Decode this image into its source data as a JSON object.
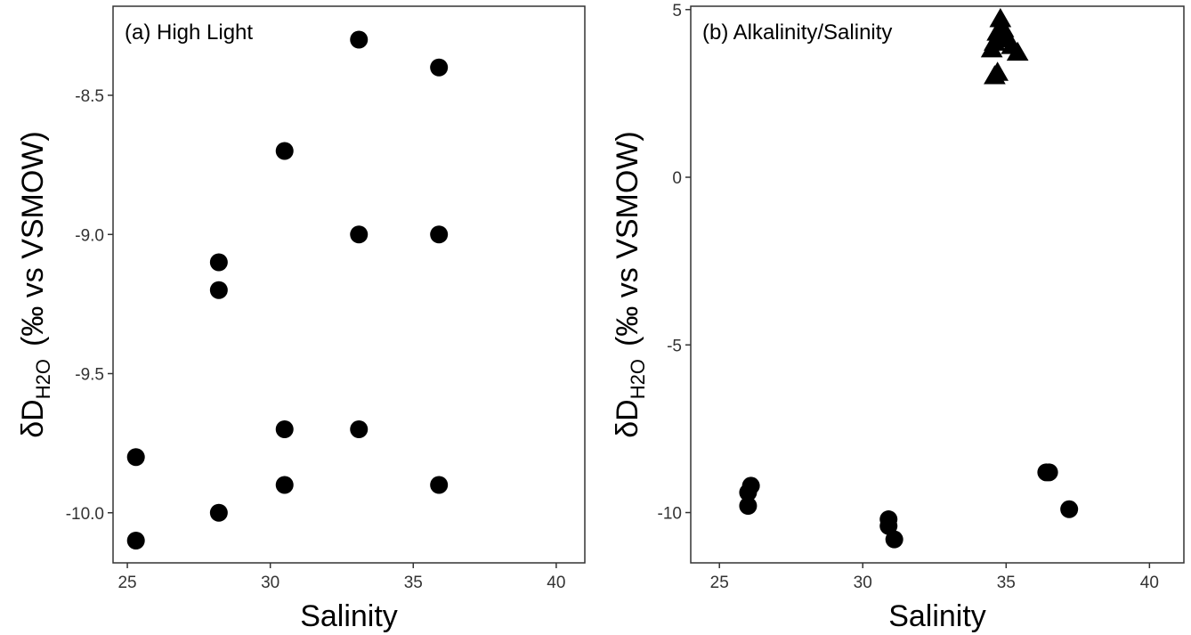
{
  "chart_data": [
    {
      "type": "scatter",
      "title": "(a) High Light",
      "xlabel": "Salinity",
      "ylabel": {
        "prefix": "δD",
        "subscript": "H2O",
        "units": "(‰ vs VSMOW)"
      },
      "xlim": [
        24.5,
        41
      ],
      "ylim": [
        -10.18,
        -8.18
      ],
      "xticks": [
        25,
        30,
        35,
        40
      ],
      "yticks": [
        -10.0,
        -9.5,
        -9.0,
        -8.5
      ],
      "ytick_labels": [
        "-10.0",
        "-9.5",
        "-9.0",
        "-8.5"
      ],
      "grid": false,
      "series": [
        {
          "marker": "circle",
          "x": [
            25.3,
            25.3,
            28.2,
            28.2,
            28.2,
            30.5,
            30.5,
            30.5,
            33.1,
            33.1,
            33.1,
            35.9,
            35.9,
            35.9
          ],
          "y": [
            -9.8,
            -10.1,
            -9.1,
            -9.2,
            -10.0,
            -8.7,
            -9.7,
            -9.9,
            -8.3,
            -9.0,
            -9.7,
            -8.4,
            -9.0,
            -9.9
          ]
        }
      ]
    },
    {
      "type": "scatter",
      "title": "(b) Alkalinity/Salinity",
      "xlabel": "Salinity",
      "ylabel": {
        "prefix": "δD",
        "subscript": "H2O",
        "units": "(‰ vs VSMOW)"
      },
      "xlim": [
        24,
        41.2
      ],
      "ylim": [
        -11.5,
        5.1
      ],
      "xticks": [
        25,
        30,
        35,
        40
      ],
      "yticks": [
        -10,
        -5,
        0,
        5
      ],
      "ytick_labels": [
        "-10",
        "-5",
        "0",
        "5"
      ],
      "grid": false,
      "series": [
        {
          "marker": "circle",
          "x": [
            26.1,
            26.0,
            26.0,
            30.9,
            30.9,
            31.1,
            36.4,
            36.5,
            37.2
          ],
          "y": [
            -9.2,
            -9.4,
            -9.8,
            -10.2,
            -10.4,
            -10.8,
            -8.8,
            -8.8,
            -9.9
          ]
        },
        {
          "marker": "triangle",
          "x": [
            34.8,
            34.9,
            34.7,
            34.6,
            35.0,
            35.2,
            35.4,
            34.5,
            34.6,
            34.7
          ],
          "y": [
            4.7,
            4.4,
            4.3,
            4.0,
            4.1,
            3.9,
            3.7,
            3.8,
            3.0,
            3.1
          ]
        }
      ]
    }
  ]
}
